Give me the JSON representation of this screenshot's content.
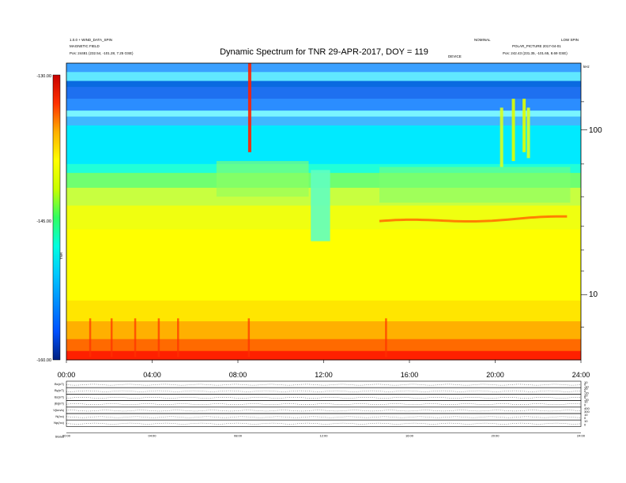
{
  "header": {
    "left_line1": "1.0.0 + WIND_DATA_SPIN",
    "left_line2": "MAGNETIC FIELD",
    "left_pos": "Pos:   24481 (232.54, -101.28, 7.25 GSE)",
    "right_line1": "NOMINAL",
    "right_line1b": "LOW SPIN",
    "right_line2": "POLAR_PICTURE 2017-04-01",
    "right_pos": "Pos:   242.43 (231.35, -101.65, 8.69 GSE)",
    "right_small": "DEVICE"
  },
  "chart_data": {
    "type": "heatmap",
    "title": "Dynamic Spectrum for TNR 29-APR-2017, DOY = 119",
    "x_ticks": [
      "00:00",
      "04:00",
      "08:00",
      "12:00",
      "16:00",
      "20:00",
      "24:00"
    ],
    "x_range_hours": [
      0,
      24
    ],
    "y_right_ticks": [
      "100",
      "10"
    ],
    "y_right_unit": "kHz",
    "y_scale": "log",
    "colorbar": {
      "ticks": [
        "-130.00",
        "-145.00",
        "-160.00"
      ],
      "range": [
        -160,
        -130
      ],
      "label": "TNR",
      "colors": [
        "#002080",
        "#0050ff",
        "#00c8ff",
        "#00ffe0",
        "#30ff60",
        "#c8ff00",
        "#ffff00",
        "#ffb000",
        "#ff3000",
        "#c80000"
      ]
    },
    "bands": [
      {
        "from": 0.0,
        "to": 0.03,
        "color": "#3aa0ff"
      },
      {
        "from": 0.03,
        "to": 0.06,
        "color": "#60e8ff"
      },
      {
        "from": 0.06,
        "to": 0.08,
        "color": "#0a6ae0"
      },
      {
        "from": 0.08,
        "to": 0.12,
        "color": "#1e70f0"
      },
      {
        "from": 0.12,
        "to": 0.16,
        "color": "#2b8dff"
      },
      {
        "from": 0.16,
        "to": 0.18,
        "color": "#7af4ff"
      },
      {
        "from": 0.18,
        "to": 0.21,
        "color": "#3fb8ff"
      },
      {
        "from": 0.21,
        "to": 0.34,
        "color": "#00eaff"
      },
      {
        "from": 0.34,
        "to": 0.37,
        "color": "#20ffd8"
      },
      {
        "from": 0.37,
        "to": 0.42,
        "color": "#70ff70"
      },
      {
        "from": 0.42,
        "to": 0.48,
        "color": "#c8ff40"
      },
      {
        "from": 0.48,
        "to": 0.56,
        "color": "#f0ff10"
      },
      {
        "from": 0.56,
        "to": 0.8,
        "color": "#ffff00"
      },
      {
        "from": 0.8,
        "to": 0.87,
        "color": "#ffe600"
      },
      {
        "from": 0.87,
        "to": 0.93,
        "color": "#ffb000"
      },
      {
        "from": 0.93,
        "to": 0.97,
        "color": "#ff6a00"
      },
      {
        "from": 0.97,
        "to": 1.0,
        "color": "#ff2000"
      }
    ],
    "features": [
      {
        "name": "burst-08:30",
        "hour": 8.55,
        "top": 0.0,
        "bottom": 0.3,
        "color": "#ff2000"
      },
      {
        "name": "burst-20:20",
        "hour": 20.3,
        "top": 0.15,
        "bottom": 0.35,
        "color": "#d8ff20"
      },
      {
        "name": "burst-20:50",
        "hour": 20.85,
        "top": 0.12,
        "bottom": 0.33,
        "color": "#e0ff00"
      },
      {
        "name": "burst-21:20",
        "hour": 21.35,
        "top": 0.12,
        "bottom": 0.3,
        "color": "#e0ff00"
      },
      {
        "name": "burst-21:35",
        "hour": 21.55,
        "top": 0.15,
        "bottom": 0.32,
        "color": "#d8ff20"
      },
      {
        "name": "dropout-12:00",
        "hour": 11.85,
        "top": 0.36,
        "bottom": 0.6,
        "color": "#60ffc0"
      }
    ],
    "emission_line": {
      "from_hour": 14.6,
      "to_hour": 23.5,
      "level": 0.535,
      "color": "#ff8000"
    },
    "panel_labels": [
      "Bx(nT)",
      "By(nT)",
      "Bz(nT)",
      "|B|(nT)",
      "V(km/s)",
      "N(/cc)",
      "Np(/cc)",
      "Status"
    ],
    "panel_right_ticks": [
      [
        "10",
        "0",
        "-10"
      ],
      [
        "20",
        "0",
        "-20"
      ],
      [
        "20",
        "0",
        "-20"
      ],
      [
        "10",
        "0"
      ],
      [
        "400",
        "300"
      ],
      [
        "10",
        "0"
      ],
      [
        "10",
        "0"
      ]
    ],
    "panel_x_ticks": [
      "00:00",
      "04:00",
      "08:00",
      "12:00",
      "16:00",
      "20:00",
      "24:00"
    ]
  }
}
